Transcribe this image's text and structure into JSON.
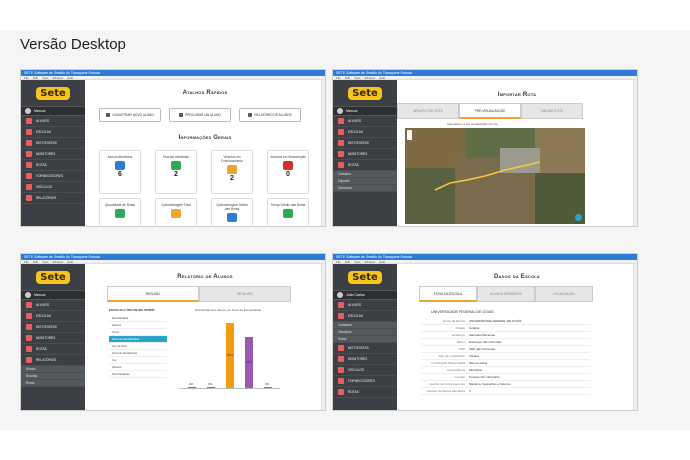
{
  "page": {
    "title": "Versão Desktop"
  },
  "window": {
    "title": "SETE Software de Gestão do Transporte Escolar",
    "menu": [
      "File",
      "Edit",
      "View",
      "Window",
      "Help"
    ]
  },
  "sidebar": {
    "logo": "Sete",
    "user": "Marcos",
    "user2": "João Carlos",
    "items": [
      "ALUNOS",
      "ESCOLAS",
      "MOTORISTAS",
      "MONITORES",
      "ROTAS",
      "FORNECEDORES",
      "VEÍCULOS",
      "RELATÓRIOS"
    ],
    "sub_rotas": [
      "Cadastro",
      "Importar",
      "Gerenciar"
    ],
    "sub_relatorios": [
      "Alunos",
      "Escolas",
      "Rotas"
    ],
    "sub_escolas": [
      "Cadastrar",
      "Visualizar",
      "Rotas"
    ]
  },
  "dashboard": {
    "shortcuts_title": "Atalhos Rápidos",
    "shortcuts": [
      "CADASTRAR NOVO ALUNO",
      "PROCURAR UM ALUNO",
      "RELATÓRIO DE ALUNOS"
    ],
    "info_title": "Informações Gerais",
    "cards": [
      {
        "label": "Alunos Atendidos",
        "value": "6",
        "color": "#2a7fd4"
      },
      {
        "label": "Escolas Atendidas",
        "value": "2",
        "color": "#2faa58"
      },
      {
        "label": "Veículos em Funcionamento",
        "value": "2",
        "color": "#f0a430"
      },
      {
        "label": "Veículos em Manutenção",
        "value": "0",
        "color": "#d9302c"
      },
      {
        "label": "Quantidade de Rotas",
        "value": "",
        "color": "#2faa58"
      },
      {
        "label": "Quilometragem Total",
        "value": "",
        "color": "#f0a430"
      },
      {
        "label": "Quilometragem Média das Rotas",
        "value": "",
        "color": "#2a7fd4"
      },
      {
        "label": "Tempo Médio das Rotas",
        "value": "",
        "color": "#2faa58"
      }
    ]
  },
  "import_route": {
    "title": "Importar Rota",
    "tabs": [
      "ARQUIVO DE ROTA",
      "PRÉ-VISUALIZAÇÃO",
      "SALVAR ROTA"
    ],
    "caption": "Veja abaixo a pré-visualização da rota"
  },
  "report": {
    "title": "Relatório de Alunos",
    "tabs": [
      "RESUMO",
      "DETALHES"
    ],
    "menu_title": "ESCOLHA O TIPO DE RELATÓRIO",
    "menu": [
      "Escolaridade",
      "Gênero",
      "Turno",
      "Nível de Escolaridade",
      "Cor de Pele",
      "Zona de Residência",
      "Cor",
      "Gênero",
      "Necessidades"
    ],
    "active_index": 3,
    "chart_title": "Distribuição dos alunos por Nível de Escolaridade",
    "chart_data": {
      "type": "bar",
      "categories": [
        "",
        "",
        "",
        "",
        ""
      ],
      "values": [
        0,
        0,
        56,
        44,
        0
      ],
      "value_labels": [
        "0%",
        "0%",
        "56%",
        "44%",
        "0%"
      ],
      "colors": [
        "#e74c3c",
        "#e74c3c",
        "#f39c12",
        "#9b59b6",
        "#3498db"
      ],
      "ylim": [
        0,
        60
      ]
    }
  },
  "school": {
    "title": "Dados da Escola",
    "tabs": [
      "FICHA DA ESCOLA",
      "ALUNOS ATENDIDOS",
      "LOCALIZAÇÃO"
    ],
    "name": "UNIVERSIDADE FEDERAL DE GOIÁS",
    "fields": [
      {
        "k": "Nome da Escola",
        "v": "UNIVERSIDADE FEDERAL DE GOIÁS"
      },
      {
        "k": "Cidade",
        "v": "Goiânia"
      },
      {
        "k": "Endereço",
        "v": "Alameda Palmeiras"
      },
      {
        "k": "Bairro",
        "v": "Endereço não informado"
      },
      {
        "k": "CEP",
        "v": "CEP não informado"
      },
      {
        "k": "Tipo de Localização",
        "v": "Urbana"
      },
      {
        "k": "Localização Diferenciada",
        "v": "Não se aplica"
      },
      {
        "k": "Dependência",
        "v": "Municipal"
      },
      {
        "k": "Contato",
        "v": "Contato não informado"
      },
      {
        "k": "Horário de Funcionamento",
        "v": "Matutino, Vespertino e Noturno"
      },
      {
        "k": "Número de alunos atendidos",
        "v": "3"
      }
    ]
  }
}
